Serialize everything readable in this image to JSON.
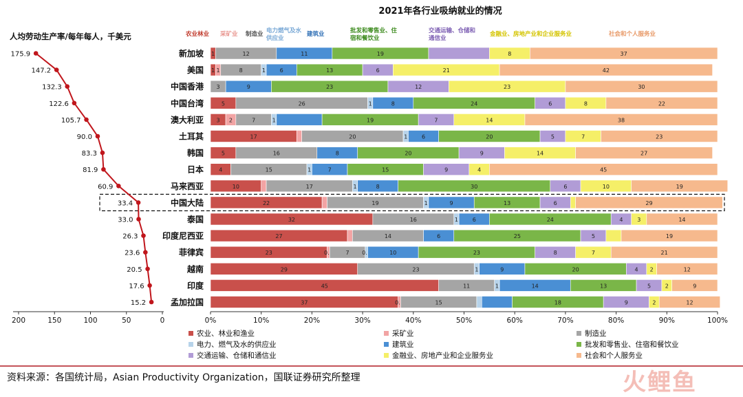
{
  "chart_data": {
    "type": "bar",
    "title": "2021年各行业吸纳就业的情况",
    "left_axis_label": "人均劳动生产率/每年每人，千美元",
    "countries": [
      "新加坡",
      "美国",
      "中国香港",
      "中国台湾",
      "澳大利亚",
      "土耳其",
      "韩国",
      "日本",
      "马来西亚",
      "中国大陆",
      "泰国",
      "印度尼西亚",
      "菲律宾",
      "越南",
      "印度",
      "孟加拉国"
    ],
    "highlighted_country": "中国大陆",
    "productivity": [
      175.9,
      147.2,
      132.3,
      122.6,
      105.7,
      90.0,
      83.3,
      81.9,
      60.9,
      33.4,
      33.0,
      26.3,
      23.6,
      20.5,
      17.6,
      15.2
    ],
    "productivity_labels": [
      "175.9",
      "147.2",
      "132.3",
      "122.6",
      "105.7",
      "90.0",
      "83.3",
      "81.9",
      "60.9",
      "33.4",
      "33.0",
      "26.3",
      "23.6",
      "20.5",
      "17.6",
      "15.2"
    ],
    "productivity_axis": {
      "ticks": [
        "200",
        "150",
        "100",
        "50",
        "0"
      ],
      "xlim": [
        200,
        0
      ]
    },
    "stack_axis": {
      "ticks": [
        "0%",
        "10%",
        "20%",
        "30%",
        "40%",
        "50%",
        "60%",
        "70%",
        "80%",
        "90%",
        "100%"
      ],
      "xlim": [
        0,
        100
      ]
    },
    "series": [
      {
        "name": "农业、林业和渔业",
        "short": "农业林业",
        "color": "#c9504b",
        "values": [
          1,
          1,
          0,
          5,
          3,
          17,
          5,
          4,
          10,
          22,
          32,
          27,
          23,
          29,
          45,
          37
        ],
        "labels": [
          "1",
          "1",
          "",
          "5",
          "3",
          "17",
          "5",
          "4",
          "10",
          "22",
          "32",
          "27",
          "23",
          "29",
          "45",
          "37"
        ]
      },
      {
        "name": "采矿业",
        "short": "采矿业",
        "color": "#f2a4a4",
        "values": [
          0,
          1,
          0,
          0,
          2,
          1,
          0,
          0,
          1,
          1,
          0,
          1,
          0.5,
          0,
          0,
          0.5
        ],
        "labels": [
          "",
          "1",
          "",
          "",
          "2",
          "",
          "",
          "",
          "",
          "",
          "",
          "",
          "0.5",
          "",
          "",
          "0.5"
        ]
      },
      {
        "name": "制造业",
        "short": "制造业",
        "color": "#a5a5a5",
        "values": [
          12,
          8,
          3,
          26,
          7,
          20,
          16,
          15,
          17,
          19,
          16,
          14,
          7,
          23,
          11,
          15
        ],
        "labels": [
          "12",
          "8",
          "3",
          "26",
          "7",
          "20",
          "16",
          "15",
          "17",
          "19",
          "16",
          "14",
          "7",
          "23",
          "11",
          "15"
        ]
      },
      {
        "name": "电力、燃气及水的供应业",
        "short": "电力燃气及水供应业",
        "color": "#b7d3ea",
        "values": [
          0,
          1,
          0,
          1,
          1,
          1,
          0,
          1,
          1,
          1,
          1,
          0,
          0.5,
          1,
          1,
          1
        ],
        "labels": [
          "",
          "1",
          "",
          "1",
          "1",
          "1",
          "",
          "1",
          "1",
          "1",
          "1",
          "",
          "0.5",
          "1",
          "1",
          ""
        ]
      },
      {
        "name": "建筑业",
        "short": "建筑业",
        "color": "#4a8fd4",
        "values": [
          11,
          6,
          9,
          8,
          9,
          6,
          8,
          7,
          8,
          9,
          6,
          6,
          10,
          9,
          14,
          6
        ],
        "labels": [
          "11",
          "6",
          "9",
          "8",
          "",
          "6",
          "8",
          "7",
          "8",
          "9",
          "6",
          "6",
          "10",
          "9",
          "14",
          ""
        ]
      },
      {
        "name": "批发和零售业、住宿和餐饮业",
        "short": "批发和零售业、住宿和餐饮业",
        "color": "#7ab648",
        "values": [
          19,
          13,
          23,
          24,
          19,
          20,
          20,
          15,
          30,
          13,
          24,
          25,
          23,
          20,
          13,
          18
        ],
        "labels": [
          "19",
          "13",
          "23",
          "24",
          "19",
          "20",
          "20",
          "15",
          "30",
          "13",
          "24",
          "25",
          "23",
          "20",
          "13",
          "18"
        ]
      },
      {
        "name": "交通运输、仓储和通信业",
        "short": "交通运输、仓储和通信业",
        "color": "#b19cd6",
        "values": [
          12,
          6,
          12,
          6,
          7,
          5,
          9,
          9,
          6,
          6,
          4,
          5,
          8,
          4,
          5,
          9
        ],
        "labels": [
          "",
          "6",
          "12",
          "6",
          "7",
          "5",
          "9",
          "9",
          "6",
          "6",
          "4",
          "5",
          "8",
          "4",
          "5",
          "9"
        ]
      },
      {
        "name": "金融业、房地产业和企业服务业",
        "short": "金融业、房地产业和企业服务业",
        "color": "#f5ef68",
        "values": [
          8,
          21,
          23,
          8,
          14,
          7,
          14,
          4,
          10,
          1,
          3,
          3,
          7,
          2,
          2,
          2
        ],
        "labels": [
          "8",
          "21",
          "23",
          "8",
          "14",
          "7",
          "14",
          "4",
          "10",
          "",
          "3",
          "",
          "7",
          "2",
          "2",
          "2"
        ]
      },
      {
        "name": "社会和个人服务业",
        "short": "社会和个人服务业",
        "color": "#f6b98d",
        "values": [
          37,
          42,
          30,
          22,
          38,
          23,
          27,
          45,
          19,
          29,
          14,
          19,
          21,
          12,
          9,
          12
        ],
        "labels": [
          "37",
          "42",
          "30",
          "22",
          "38",
          "23",
          "27",
          "45",
          "19",
          "29",
          "14",
          "19",
          "21",
          "12",
          "9",
          "12"
        ]
      }
    ]
  },
  "footer": {
    "source": "资料来源：各国统计局，Asian Productivity Organization，国联证券研究所整理"
  },
  "watermark": {
    "text": "火鲤鱼"
  }
}
